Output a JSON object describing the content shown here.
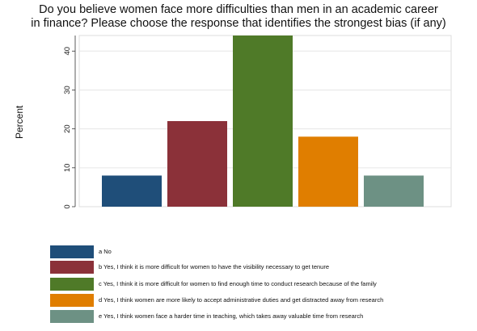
{
  "chart_data": {
    "type": "bar",
    "title_lines": [
      "Do you believe women face more difficulties than men in an academic career",
      "in finance?   Please choose the response that identifies the strongest bias (if any)"
    ],
    "ylabel": "Percent",
    "ylim": [
      0,
      44
    ],
    "yticks": [
      "0",
      "10",
      "20",
      "30",
      "40"
    ],
    "categories": [
      "a No",
      "b Yes, I think it is more difficult for women to have the visibility necessary to get tenure",
      "c Yes, I think it is more difficult for women to find enough time to conduct research because of the family",
      "d Yes, I think women are more likely to accept administrative duties and get distracted away from research",
      "e Yes, I think women face a harder time in teaching, which takes away valuable time from research"
    ],
    "values": [
      8,
      22,
      44,
      18,
      8
    ],
    "colors": [
      "#1f4e79",
      "#8b3139",
      "#4f7a28",
      "#e07e00",
      "#6d9184"
    ],
    "grid": true,
    "legend_position": "bottom"
  }
}
